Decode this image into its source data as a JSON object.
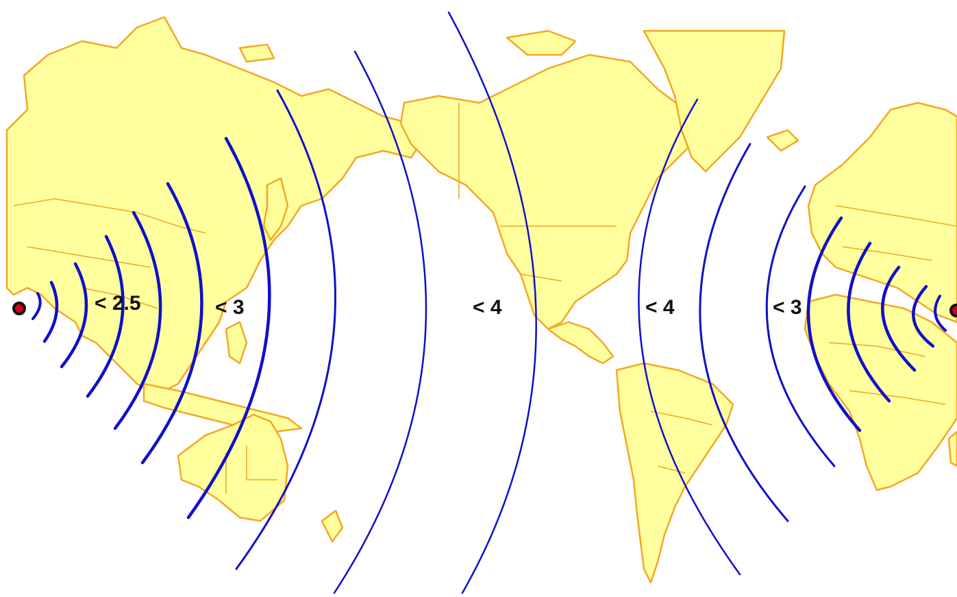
{
  "map": {
    "colors": {
      "land_fill": "#ffff99",
      "coastline": "#f5a623",
      "wavefront": "#1010c8",
      "epicenter_marker": "#d0021b",
      "label_text": "#111111"
    },
    "labels": {
      "left_inner": "< 2.5",
      "left_outer": "< 3",
      "center_left": "< 4",
      "center_right": "< 4",
      "right_outer": "< 3"
    },
    "markers": {
      "left": "epicenter-marker",
      "right": "epicenter-marker"
    }
  }
}
